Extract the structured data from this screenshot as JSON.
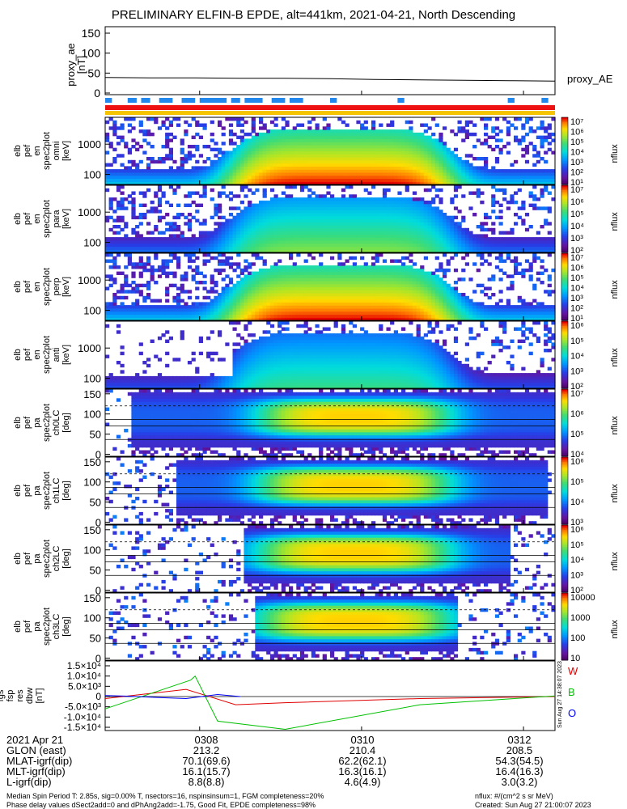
{
  "title": "PRELIMINARY ELFIN-B EPDE, alt=441km, 2021-04-21, North Descending",
  "chart_data": [
    {
      "type": "line",
      "name": "proxy_ae",
      "ylabel_lines": [
        "proxy_ae",
        "[nT]"
      ],
      "ylim": [
        0,
        150
      ],
      "ticks": [
        "0",
        "50",
        "100",
        "150"
      ],
      "legend": "proxy_AE",
      "x": [
        0,
        0.1,
        0.2,
        0.3,
        0.4,
        0.5,
        0.6,
        0.7,
        0.8,
        0.9,
        1.0
      ],
      "values": [
        39,
        38,
        38,
        37,
        37,
        36,
        34,
        33,
        32,
        31,
        30
      ],
      "fgm_blue_blocks": [
        [
          0,
          0.015
        ],
        [
          0.05,
          0.07
        ],
        [
          0.08,
          0.1
        ],
        [
          0.12,
          0.15
        ],
        [
          0.17,
          0.2
        ],
        [
          0.21,
          0.27
        ],
        [
          0.28,
          0.3
        ],
        [
          0.31,
          0.35
        ],
        [
          0.37,
          0.4
        ],
        [
          0.41,
          0.44
        ],
        [
          0.5,
          0.515
        ],
        [
          0.65,
          0.665
        ],
        [
          0.895,
          0.91
        ],
        [
          0.97,
          0.985
        ]
      ]
    },
    {
      "type": "heatmap",
      "ylabel_lines": [
        "elb",
        "pef",
        "en",
        "spec2plot",
        "omni",
        "[keV]"
      ],
      "ticks": [
        "100",
        "1000"
      ],
      "colorbar": [
        "10⁷",
        "10⁶",
        "10⁵",
        "10⁴",
        "10³",
        "10²",
        "10¹"
      ],
      "colorbar_label": "nflux"
    },
    {
      "type": "heatmap",
      "ylabel_lines": [
        "elb",
        "pef",
        "en",
        "spec2plot",
        "para",
        "[keV]"
      ],
      "ticks": [
        "100",
        "1000"
      ],
      "colorbar": [
        "10⁷",
        "10⁶",
        "10⁵",
        "10⁴",
        "10³",
        "10²"
      ],
      "colorbar_label": "nflux"
    },
    {
      "type": "heatmap",
      "ylabel_lines": [
        "elb",
        "pef",
        "en",
        "spec2plot",
        "perp",
        "[keV]"
      ],
      "ticks": [
        "100",
        "1000"
      ],
      "colorbar": [
        "10⁷",
        "10⁶",
        "10⁵",
        "10⁴",
        "10³",
        "10²",
        "10¹"
      ],
      "colorbar_label": "nflux"
    },
    {
      "type": "heatmap",
      "ylabel_lines": [
        "elb",
        "pef",
        "en",
        "spec2plot",
        "anti",
        "[keV]"
      ],
      "ticks": [
        "100",
        "1000"
      ],
      "colorbar": [
        "10⁶",
        "10⁵",
        "10⁴",
        "10³",
        "10²"
      ],
      "colorbar_label": "nflux"
    },
    {
      "type": "heatmap",
      "ylabel_lines": [
        "elb",
        "pef",
        "pa",
        "spec2plot",
        "ch0LC",
        "[deg]"
      ],
      "ticks": [
        "0",
        "50",
        "100",
        "150"
      ],
      "colorbar": [
        "10⁷",
        "10⁶",
        "10⁵",
        "10⁴"
      ],
      "colorbar_label": "nflux"
    },
    {
      "type": "heatmap",
      "ylabel_lines": [
        "elb",
        "pef",
        "pa",
        "spec2plot",
        "ch1LC",
        "[deg]"
      ],
      "ticks": [
        "0",
        "50",
        "100",
        "150"
      ],
      "colorbar": [
        "10⁶",
        "10⁵",
        "10⁴",
        "10³"
      ],
      "colorbar_label": "nflux"
    },
    {
      "type": "heatmap",
      "ylabel_lines": [
        "elb",
        "pef",
        "pa",
        "spec2plot",
        "ch2LC",
        "[deg]"
      ],
      "ticks": [
        "0",
        "50",
        "100",
        "150"
      ],
      "colorbar": [
        "10⁶",
        "10⁵",
        "10⁴",
        "10³",
        "10²"
      ],
      "colorbar_label": "nflux"
    },
    {
      "type": "heatmap",
      "ylabel_lines": [
        "elb",
        "pef",
        "pa",
        "spec2plot",
        "ch3LC",
        "[deg]"
      ],
      "ticks": [
        "0",
        "50",
        "100",
        "150"
      ],
      "colorbar": [
        "10000",
        "1000",
        "100",
        "10"
      ],
      "colorbar_label": "nflux"
    },
    {
      "type": "line",
      "ylabel_lines": [
        "elb",
        "fgs",
        "fsp",
        "res",
        "dbw",
        "[nT]"
      ],
      "ylim": [
        -15000,
        15000
      ],
      "ticks": [
        "1.5×10⁴",
        "1.0×10⁴",
        "5.0×10³",
        "0",
        "-5.0×10³",
        "-1.0×10⁴",
        "-1.5×10⁴"
      ],
      "series": [
        {
          "name": "W",
          "color": "#e00000",
          "x": [
            0,
            0.18,
            0.29,
            0.4,
            0.7,
            1.0
          ],
          "values": [
            -1000,
            3500,
            -4000,
            -3000,
            -1000,
            0
          ]
        },
        {
          "name": "B",
          "color": "#00c000",
          "x": [
            0,
            0.19,
            0.2,
            0.25,
            0.4,
            0.7,
            1.0
          ],
          "values": [
            -6000,
            8000,
            10000,
            -12000,
            -16000,
            -4000,
            300
          ]
        },
        {
          "name": "O",
          "color": "#0000ff",
          "x": [
            0,
            0.05,
            0.12,
            0.18,
            0.25,
            0.3
          ],
          "values": [
            500,
            200,
            -500,
            -1000,
            1000,
            0
          ]
        }
      ],
      "timestamp": "Sun Aug 27 14:38:07 2023"
    }
  ],
  "time_axis": {
    "ticks": [
      "0308",
      "0310",
      "0312"
    ],
    "tick_positions_data": [
      0.21,
      0.57,
      0.93
    ]
  },
  "table": {
    "rows": [
      {
        "label": "2021 Apr 21",
        "values": [
          "0308",
          "0310",
          "0312"
        ]
      },
      {
        "label": "GLON (east)",
        "values": [
          "213.2",
          "210.4",
          "208.5"
        ]
      },
      {
        "label": "MLAT-igrf(dip)",
        "values": [
          "70.1(69.6)",
          "62.2(62.1)",
          "54.3(54.5)"
        ]
      },
      {
        "label": "MLT-igrf(dip)",
        "values": [
          "16.1(15.7)",
          "16.3(16.1)",
          "16.4(16.3)"
        ]
      },
      {
        "label": "L-igrf(dip)",
        "values": [
          "8.8(8.8)",
          "4.6(4.9)",
          "3.0(3.2)"
        ]
      }
    ]
  },
  "footer": {
    "line1": "Median Spin Period T: 2.85s, sig=0.00% T, nsectors=16, nspinsinsum=1, FGM completeness=20%",
    "line2": "Phase delay values dSect2add=0 and dPhAng2add=-1.75, Good Fit, EPDE completeness=98%",
    "right1": "nflux: #/(cm^2 s sr MeV)",
    "right2": "Created: Sun Aug 27 21:00:07 2023"
  },
  "colors": {
    "red_bar": "#ee1111",
    "yellow_bar": "#f5c400",
    "fgm_blue": "#2288ee"
  }
}
